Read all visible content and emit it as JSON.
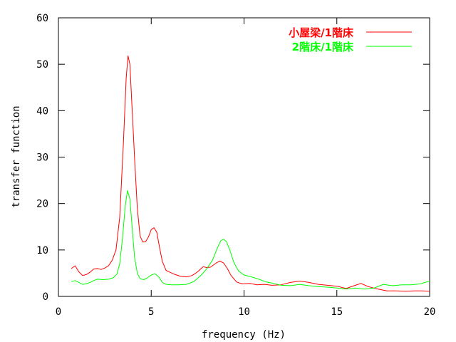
{
  "chart_data": {
    "type": "line",
    "title": "",
    "xlabel": "frequency (Hz)",
    "ylabel": "transfer function",
    "xlim": [
      0,
      20
    ],
    "ylim": [
      0,
      60
    ],
    "x_ticks": [
      0,
      5,
      10,
      15,
      20
    ],
    "y_ticks": [
      0,
      10,
      20,
      30,
      40,
      50,
      60
    ],
    "x_tick_labels": [
      "0",
      "5",
      "10",
      "15",
      "20"
    ],
    "y_tick_labels": [
      "0",
      "10",
      "20",
      "30",
      "40",
      "50",
      "60"
    ],
    "grid": false,
    "legend_position": "top-right",
    "series": [
      {
        "name": "小屋梁/1階床",
        "color": "#ff0000",
        "points": [
          [
            0.7,
            6.0
          ],
          [
            0.9,
            6.6
          ],
          [
            1.1,
            5.3
          ],
          [
            1.3,
            4.5
          ],
          [
            1.5,
            4.7
          ],
          [
            1.7,
            5.2
          ],
          [
            1.9,
            5.9
          ],
          [
            2.1,
            6.0
          ],
          [
            2.3,
            5.8
          ],
          [
            2.5,
            6.1
          ],
          [
            2.7,
            6.6
          ],
          [
            2.9,
            7.8
          ],
          [
            3.1,
            10.0
          ],
          [
            3.3,
            17.0
          ],
          [
            3.5,
            33.0
          ],
          [
            3.65,
            47.0
          ],
          [
            3.75,
            51.8
          ],
          [
            3.85,
            50.0
          ],
          [
            3.95,
            42.0
          ],
          [
            4.1,
            30.0
          ],
          [
            4.25,
            19.0
          ],
          [
            4.4,
            13.0
          ],
          [
            4.55,
            11.7
          ],
          [
            4.7,
            11.8
          ],
          [
            4.85,
            12.8
          ],
          [
            5.0,
            14.4
          ],
          [
            5.15,
            14.8
          ],
          [
            5.3,
            13.8
          ],
          [
            5.45,
            10.5
          ],
          [
            5.6,
            7.5
          ],
          [
            5.8,
            5.6
          ],
          [
            6.0,
            5.2
          ],
          [
            6.3,
            4.7
          ],
          [
            6.6,
            4.3
          ],
          [
            6.9,
            4.2
          ],
          [
            7.2,
            4.5
          ],
          [
            7.5,
            5.3
          ],
          [
            7.8,
            6.4
          ],
          [
            8.0,
            6.2
          ],
          [
            8.2,
            6.3
          ],
          [
            8.5,
            7.2
          ],
          [
            8.7,
            7.6
          ],
          [
            8.9,
            7.2
          ],
          [
            9.1,
            6.0
          ],
          [
            9.3,
            4.5
          ],
          [
            9.6,
            3.1
          ],
          [
            9.9,
            2.7
          ],
          [
            10.3,
            2.8
          ],
          [
            10.7,
            2.5
          ],
          [
            11.1,
            2.6
          ],
          [
            11.5,
            2.4
          ],
          [
            12.0,
            2.5
          ],
          [
            12.5,
            3.0
          ],
          [
            13.0,
            3.3
          ],
          [
            13.5,
            3.0
          ],
          [
            14.0,
            2.6
          ],
          [
            14.5,
            2.4
          ],
          [
            15.0,
            2.2
          ],
          [
            15.5,
            1.7
          ],
          [
            16.0,
            2.4
          ],
          [
            16.3,
            2.8
          ],
          [
            16.7,
            2.1
          ],
          [
            17.2,
            1.6
          ],
          [
            17.7,
            1.2
          ],
          [
            18.2,
            1.2
          ],
          [
            18.7,
            1.1
          ],
          [
            19.2,
            1.2
          ],
          [
            19.6,
            1.2
          ],
          [
            20.0,
            1.1
          ]
        ]
      },
      {
        "name": "2階床/1階床",
        "color": "#00ff00",
        "points": [
          [
            0.7,
            3.2
          ],
          [
            0.9,
            3.4
          ],
          [
            1.1,
            3.0
          ],
          [
            1.3,
            2.6
          ],
          [
            1.5,
            2.7
          ],
          [
            1.7,
            3.0
          ],
          [
            1.9,
            3.4
          ],
          [
            2.1,
            3.7
          ],
          [
            2.4,
            3.6
          ],
          [
            2.7,
            3.7
          ],
          [
            2.95,
            4.0
          ],
          [
            3.15,
            4.8
          ],
          [
            3.3,
            7.0
          ],
          [
            3.45,
            12.5
          ],
          [
            3.6,
            19.5
          ],
          [
            3.72,
            22.8
          ],
          [
            3.85,
            21.0
          ],
          [
            3.97,
            15.0
          ],
          [
            4.1,
            8.5
          ],
          [
            4.25,
            5.0
          ],
          [
            4.4,
            3.8
          ],
          [
            4.6,
            3.6
          ],
          [
            4.8,
            4.0
          ],
          [
            5.0,
            4.6
          ],
          [
            5.2,
            4.9
          ],
          [
            5.4,
            4.2
          ],
          [
            5.6,
            3.0
          ],
          [
            5.8,
            2.6
          ],
          [
            6.1,
            2.5
          ],
          [
            6.5,
            2.5
          ],
          [
            6.9,
            2.6
          ],
          [
            7.3,
            3.2
          ],
          [
            7.7,
            4.6
          ],
          [
            8.0,
            6.0
          ],
          [
            8.3,
            7.8
          ],
          [
            8.55,
            10.3
          ],
          [
            8.75,
            12.0
          ],
          [
            8.9,
            12.3
          ],
          [
            9.05,
            11.8
          ],
          [
            9.25,
            9.8
          ],
          [
            9.45,
            7.3
          ],
          [
            9.7,
            5.5
          ],
          [
            10.0,
            4.6
          ],
          [
            10.4,
            4.2
          ],
          [
            10.8,
            3.7
          ],
          [
            11.2,
            3.1
          ],
          [
            11.6,
            2.8
          ],
          [
            12.0,
            2.4
          ],
          [
            12.5,
            2.3
          ],
          [
            13.0,
            2.6
          ],
          [
            13.5,
            2.3
          ],
          [
            14.0,
            2.1
          ],
          [
            14.5,
            2.0
          ],
          [
            15.0,
            1.8
          ],
          [
            15.5,
            1.6
          ],
          [
            16.0,
            1.8
          ],
          [
            16.5,
            1.6
          ],
          [
            17.0,
            1.8
          ],
          [
            17.5,
            2.6
          ],
          [
            18.0,
            2.3
          ],
          [
            18.5,
            2.5
          ],
          [
            19.0,
            2.5
          ],
          [
            19.5,
            2.7
          ],
          [
            20.0,
            3.3
          ]
        ]
      }
    ]
  }
}
